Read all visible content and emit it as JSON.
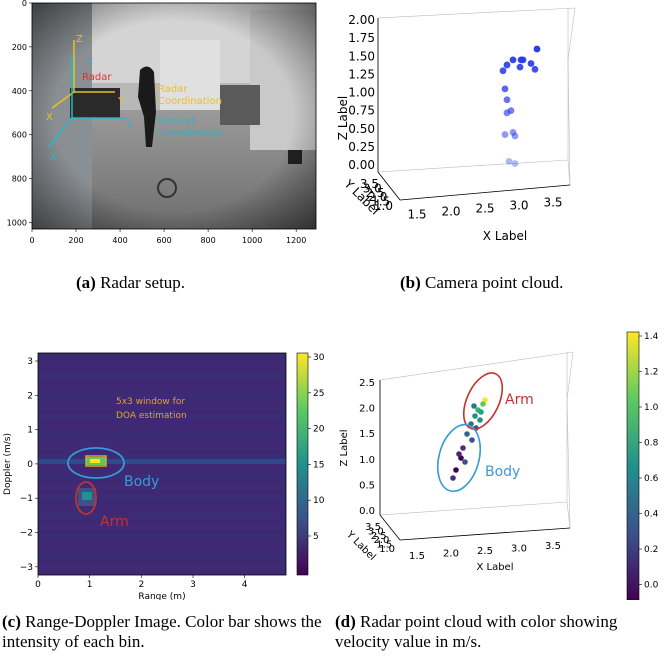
{
  "panel_a": {
    "x_ticks": [
      "0",
      "200",
      "400",
      "600",
      "800",
      "1000",
      "1200"
    ],
    "y_ticks": [
      "0",
      "200",
      "400",
      "600",
      "800",
      "1000"
    ],
    "annotations": {
      "radar": "Radar",
      "radar_coord": "Radar\nCoordination",
      "ground_coord": "Ground\nCoordination",
      "x": "X",
      "y": "Y",
      "z": "Z"
    },
    "caption_tag": "(a)",
    "caption_text": " Radar setup."
  },
  "panel_b": {
    "chart_data": {
      "type": "scatter",
      "zlabel": "Z Label",
      "xlabel": "X Label",
      "ylabel": "Y Label",
      "z_ticks": [
        "2.00",
        "1.75",
        "1.50",
        "1.25",
        "1.00",
        "0.75",
        "0.50",
        "0.25",
        "0.00"
      ],
      "x_ticks": [
        "1.5",
        "2.0",
        "2.5",
        "3.0",
        "3.5"
      ],
      "y_ticks": [
        "3.5",
        "3.0",
        "2.5",
        "2.0",
        "1.5",
        "1.0"
      ],
      "points_z": [
        1.6,
        1.45,
        1.45,
        1.45,
        1.4,
        1.38,
        1.35,
        1.32,
        1.3,
        1.05,
        0.9,
        0.75,
        0.72,
        0.45,
        0.42,
        0.4,
        0.05,
        0.02
      ]
    },
    "caption_tag": "(b)",
    "caption_text": " Camera point cloud."
  },
  "panel_c": {
    "chart_data": {
      "type": "heatmap",
      "xlabel": "Range (m)",
      "ylabel": "Doppler (m/s)",
      "x_ticks": [
        "0",
        "1",
        "2",
        "3",
        "4"
      ],
      "y_ticks": [
        "3",
        "2",
        "1",
        "0",
        "−1",
        "−2",
        "−3"
      ],
      "colorbar_ticks": [
        "30",
        "25",
        "20",
        "15",
        "10",
        "5"
      ],
      "annotations": [
        "5x3 window for",
        "DOA estimation",
        "Body",
        "Arm"
      ]
    },
    "caption_tag": "(c)",
    "caption_text": " Range-Doppler Image. Color bar shows the intensity of each bin."
  },
  "panel_d": {
    "chart_data": {
      "type": "scatter",
      "zlabel": "Z Label",
      "xlabel": "X Label",
      "ylabel": "Y Label",
      "z_ticks": [
        "2.5",
        "2.0",
        "1.5",
        "1.0",
        "0.5",
        "0.0"
      ],
      "x_ticks": [
        "1.5",
        "2.0",
        "2.5",
        "3.0",
        "3.5"
      ],
      "y_ticks": [
        "3.5",
        "3.0",
        "2.5",
        "2.0",
        "1.5",
        "1.0"
      ],
      "colorbar_ticks": [
        "1.4",
        "1.2",
        "1.0",
        "0.8",
        "0.6",
        "0.4",
        "0.2",
        "0.0"
      ],
      "annotations": [
        "Arm",
        "Body"
      ]
    },
    "caption_tag": "(d)",
    "caption_text": " Radar point cloud with color showing velocity value in m/s."
  }
}
